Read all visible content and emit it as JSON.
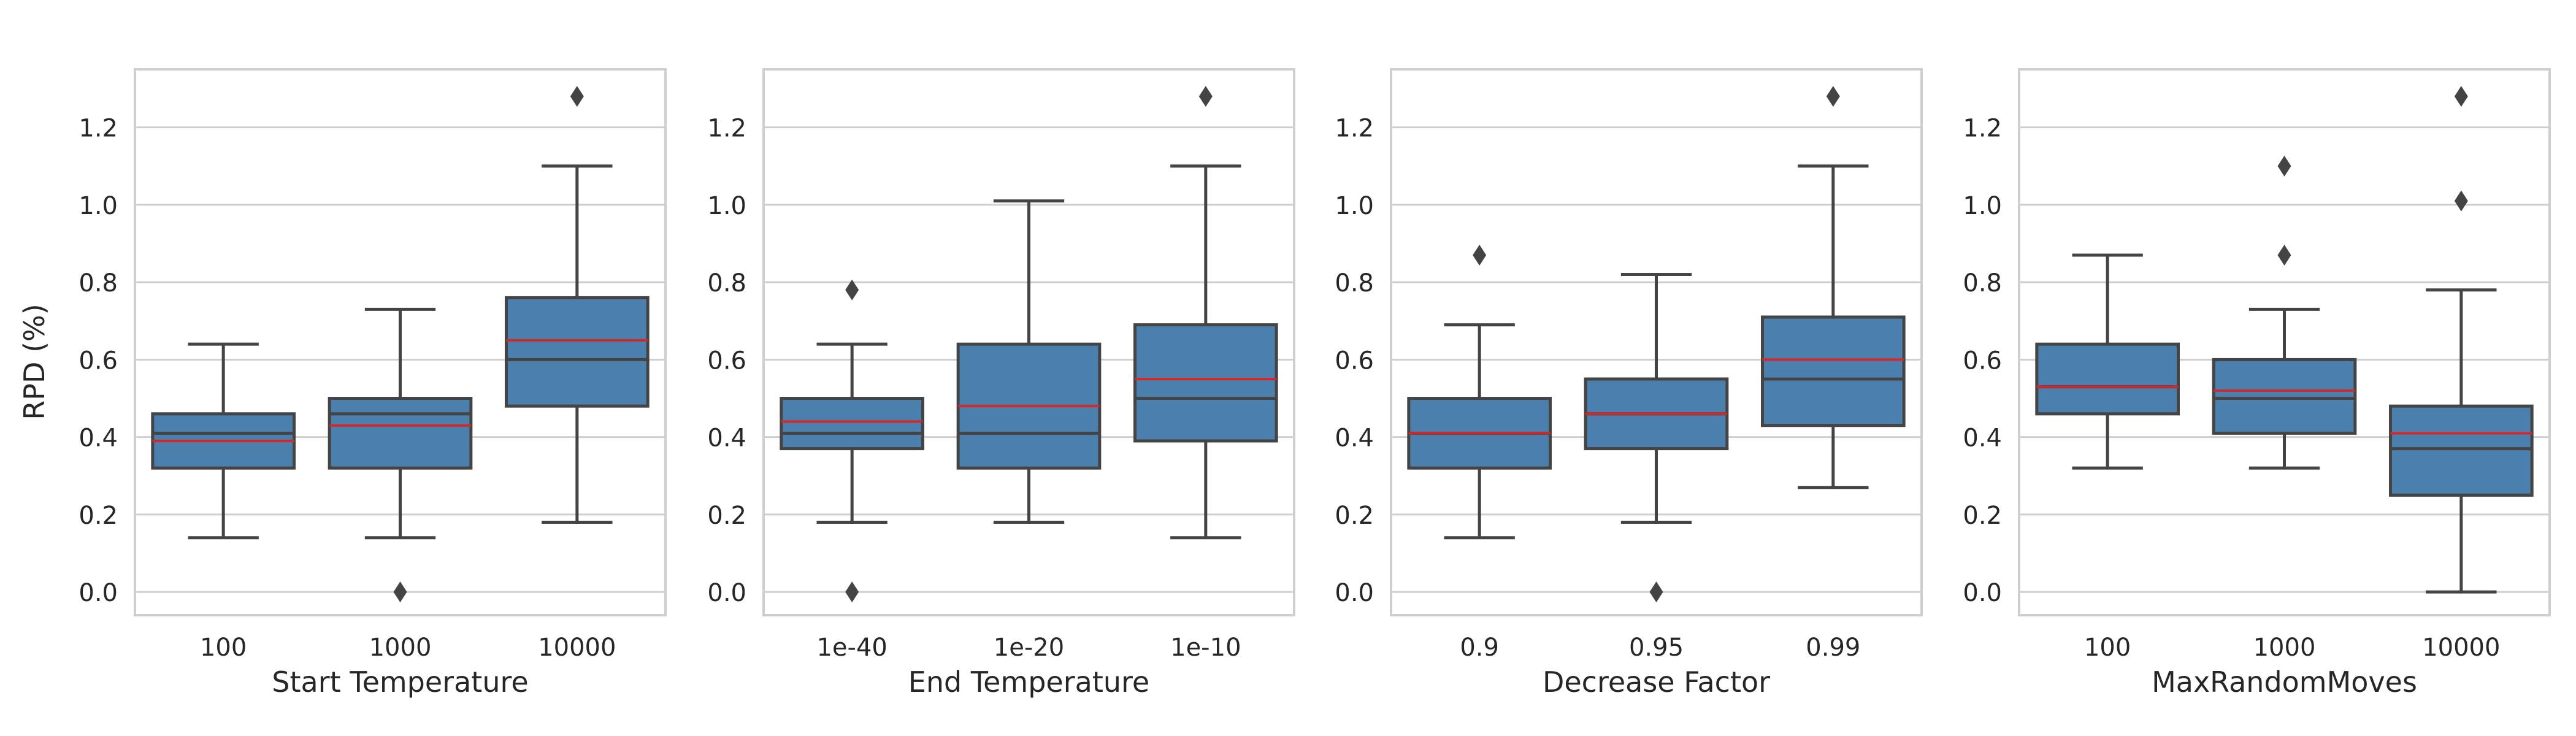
{
  "colors": {
    "box_fill": "#4a7fae",
    "box_edge": "#444444",
    "mean_line": "#d62728",
    "median_line": "#444444",
    "grid": "#cfcfcf",
    "frame": "#cfcfcf",
    "flier": "#444444"
  },
  "figure": {
    "ylabel": "RPD (%)"
  },
  "chart_data": [
    {
      "type": "box",
      "xlabel": "Start Temperature",
      "ylabel": "RPD (%)",
      "ylim": [
        -0.06,
        1.35
      ],
      "yticks": [
        "0.0",
        "0.2",
        "0.4",
        "0.6",
        "0.8",
        "1.0",
        "1.2"
      ],
      "grid": true,
      "categories": [
        "100",
        "1000",
        "10000"
      ],
      "boxes": [
        {
          "whisker_low": 0.14,
          "q1": 0.32,
          "median": 0.41,
          "mean": 0.39,
          "q3": 0.46,
          "whisker_high": 0.64,
          "outliers": []
        },
        {
          "whisker_low": 0.14,
          "q1": 0.32,
          "median": 0.46,
          "mean": 0.43,
          "q3": 0.5,
          "whisker_high": 0.73,
          "outliers": [
            0.0
          ]
        },
        {
          "whisker_low": 0.18,
          "q1": 0.48,
          "median": 0.6,
          "mean": 0.65,
          "q3": 0.76,
          "whisker_high": 1.1,
          "outliers": [
            1.28
          ]
        }
      ]
    },
    {
      "type": "box",
      "xlabel": "End Temperature",
      "ylabel": "",
      "ylim": [
        -0.06,
        1.35
      ],
      "yticks": [
        "0.0",
        "0.2",
        "0.4",
        "0.6",
        "0.8",
        "1.0",
        "1.2"
      ],
      "grid": true,
      "categories": [
        "1e-40",
        "1e-20",
        "1e-10"
      ],
      "boxes": [
        {
          "whisker_low": 0.18,
          "q1": 0.37,
          "median": 0.41,
          "mean": 0.44,
          "q3": 0.5,
          "whisker_high": 0.64,
          "outliers": [
            0.78,
            0.0
          ]
        },
        {
          "whisker_low": 0.18,
          "q1": 0.32,
          "median": 0.41,
          "mean": 0.48,
          "q3": 0.64,
          "whisker_high": 1.01,
          "outliers": []
        },
        {
          "whisker_low": 0.14,
          "q1": 0.39,
          "median": 0.5,
          "mean": 0.55,
          "q3": 0.69,
          "whisker_high": 1.1,
          "outliers": [
            1.28
          ]
        }
      ]
    },
    {
      "type": "box",
      "xlabel": "Decrease Factor",
      "ylabel": "",
      "ylim": [
        -0.06,
        1.35
      ],
      "yticks": [
        "0.0",
        "0.2",
        "0.4",
        "0.6",
        "0.8",
        "1.0",
        "1.2"
      ],
      "grid": true,
      "categories": [
        "0.9",
        "0.95",
        "0.99"
      ],
      "boxes": [
        {
          "whisker_low": 0.14,
          "q1": 0.32,
          "median": 0.41,
          "mean": 0.41,
          "q3": 0.5,
          "whisker_high": 0.69,
          "outliers": [
            0.87
          ]
        },
        {
          "whisker_low": 0.18,
          "q1": 0.37,
          "median": 0.46,
          "mean": 0.46,
          "q3": 0.55,
          "whisker_high": 0.82,
          "outliers": [
            0.0
          ]
        },
        {
          "whisker_low": 0.27,
          "q1": 0.43,
          "median": 0.55,
          "mean": 0.6,
          "q3": 0.71,
          "whisker_high": 1.1,
          "outliers": [
            1.28
          ]
        }
      ]
    },
    {
      "type": "box",
      "xlabel": "MaxRandomMoves",
      "ylabel": "",
      "ylim": [
        -0.06,
        1.35
      ],
      "yticks": [
        "0.0",
        "0.2",
        "0.4",
        "0.6",
        "0.8",
        "1.0",
        "1.2"
      ],
      "grid": true,
      "categories": [
        "100",
        "1000",
        "10000"
      ],
      "boxes": [
        {
          "whisker_low": 0.32,
          "q1": 0.46,
          "median": 0.53,
          "mean": 0.53,
          "q3": 0.64,
          "whisker_high": 0.87,
          "outliers": []
        },
        {
          "whisker_low": 0.32,
          "q1": 0.41,
          "median": 0.5,
          "mean": 0.52,
          "q3": 0.6,
          "whisker_high": 0.73,
          "outliers": [
            1.1,
            0.87
          ]
        },
        {
          "whisker_low": 0.0,
          "q1": 0.25,
          "median": 0.37,
          "mean": 0.41,
          "q3": 0.48,
          "whisker_high": 0.78,
          "outliers": [
            1.28,
            1.01
          ]
        }
      ]
    }
  ]
}
